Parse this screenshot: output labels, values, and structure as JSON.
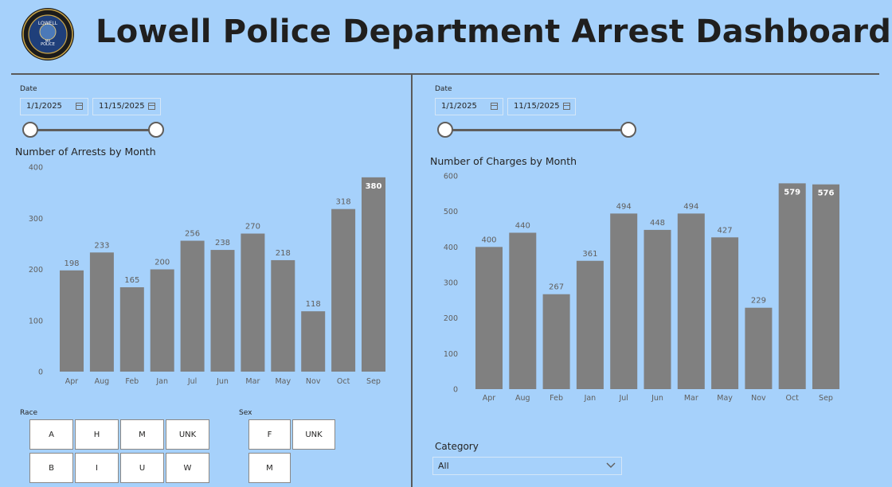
{
  "header": {
    "title": "Lowell Police Department Arrest Dashboard",
    "logo": {
      "icon": "police-seal-logo",
      "top_text": "LOWELL",
      "middle_text": "POLICE",
      "small_text": "MA"
    }
  },
  "left_panel": {
    "date_filter": {
      "label": "Date",
      "start": "1/1/2025",
      "end": "11/15/2025"
    },
    "race_filter": {
      "label": "Race",
      "options": [
        "A",
        "H",
        "M",
        "UNK",
        "B",
        "I",
        "U",
        "W"
      ]
    },
    "sex_filter": {
      "label": "Sex",
      "options": [
        "F",
        "UNK",
        "M"
      ]
    }
  },
  "right_panel": {
    "date_filter": {
      "label": "Date",
      "start": "1/1/2025",
      "end": "11/15/2025"
    },
    "category_filter": {
      "label": "Category",
      "selected": "All"
    }
  },
  "colors": {
    "bar": "#808080",
    "background": "#a6d1fb",
    "axis_text": "#605e5c"
  },
  "chart_data": [
    {
      "type": "bar",
      "title": "Number of Arrests by Month",
      "categories": [
        "Apr",
        "Aug",
        "Feb",
        "Jan",
        "Jul",
        "Jun",
        "Mar",
        "May",
        "Nov",
        "Oct",
        "Sep"
      ],
      "values": [
        198,
        233,
        165,
        200,
        256,
        238,
        270,
        218,
        118,
        318,
        380
      ],
      "label_inside": [
        false,
        false,
        false,
        false,
        false,
        false,
        false,
        false,
        false,
        false,
        true
      ],
      "yticks": [
        0,
        100,
        200,
        300,
        400
      ],
      "ylim": [
        0,
        400
      ],
      "grid": false
    },
    {
      "type": "bar",
      "title": "Number of Charges by Month",
      "categories": [
        "Apr",
        "Aug",
        "Feb",
        "Jan",
        "Jul",
        "Jun",
        "Mar",
        "May",
        "Nov",
        "Oct",
        "Sep"
      ],
      "values": [
        400,
        440,
        267,
        361,
        494,
        448,
        494,
        427,
        229,
        579,
        576
      ],
      "label_inside": [
        false,
        false,
        false,
        false,
        false,
        false,
        false,
        false,
        false,
        true,
        true
      ],
      "yticks": [
        0,
        100,
        200,
        300,
        400,
        500,
        600
      ],
      "ylim": [
        0,
        600
      ],
      "grid": false
    }
  ]
}
